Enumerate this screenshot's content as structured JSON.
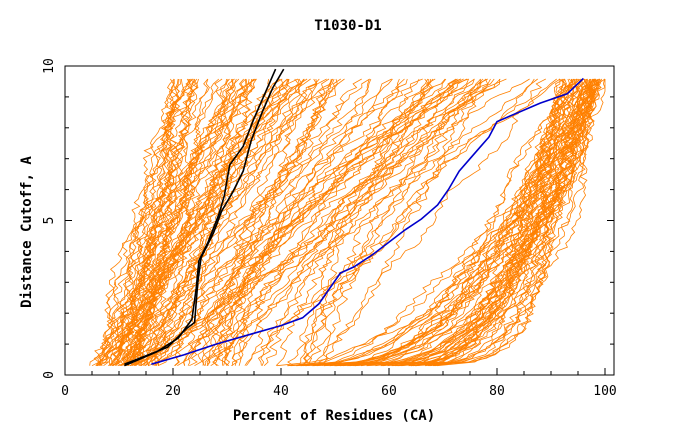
{
  "chart_data": {
    "type": "line",
    "title": "T1030-D1",
    "xlabel": "Percent of Residues (CA)",
    "ylabel": "Distance Cutoff, A",
    "xlim": [
      0,
      100
    ],
    "ylim": [
      0,
      10
    ],
    "x_ticks": [
      "0",
      "20",
      "40",
      "60",
      "80",
      "100"
    ],
    "y_ticks": [
      "0",
      "5",
      "10"
    ],
    "grid": false,
    "legend": "none",
    "colors": {
      "background_models": "#ff8000",
      "highlight_black": "#000000",
      "highlight_blue": "#0000cc"
    },
    "highlight_series": [
      {
        "color": "#000000",
        "points": [
          [
            11,
            0.35
          ],
          [
            19,
            0.9
          ],
          [
            22.5,
            1.5
          ],
          [
            24,
            1.7
          ],
          [
            24.6,
            3.0
          ],
          [
            25.2,
            3.8
          ],
          [
            27.5,
            4.6
          ],
          [
            29,
            5.3
          ],
          [
            31,
            5.9
          ],
          [
            33,
            6.6
          ],
          [
            34.5,
            7.6
          ],
          [
            36.5,
            8.5
          ],
          [
            38.5,
            9.3
          ],
          [
            40.5,
            9.9
          ]
        ]
      },
      {
        "color": "#000000",
        "points": [
          [
            11,
            0.3
          ],
          [
            17,
            0.75
          ],
          [
            21,
            1.2
          ],
          [
            23.5,
            1.8
          ],
          [
            24.3,
            2.8
          ],
          [
            24.8,
            3.7
          ],
          [
            26.5,
            4.3
          ],
          [
            28.5,
            5.2
          ],
          [
            29.5,
            5.8
          ],
          [
            30.5,
            6.8
          ],
          [
            33,
            7.4
          ],
          [
            35,
            8.3
          ],
          [
            37,
            9.1
          ],
          [
            39,
            9.9
          ]
        ]
      },
      {
        "color": "#0000cc",
        "points": [
          [
            16,
            0.35
          ],
          [
            22,
            0.65
          ],
          [
            28,
            1.0
          ],
          [
            34,
            1.3
          ],
          [
            40,
            1.6
          ],
          [
            44,
            1.85
          ],
          [
            47,
            2.3
          ],
          [
            49,
            2.8
          ],
          [
            51,
            3.3
          ],
          [
            53.5,
            3.5
          ],
          [
            57,
            3.9
          ],
          [
            60,
            4.3
          ],
          [
            63,
            4.7
          ],
          [
            66,
            5.05
          ],
          [
            69,
            5.5
          ],
          [
            71,
            6.0
          ],
          [
            73,
            6.6
          ],
          [
            75,
            7.0
          ],
          [
            77,
            7.4
          ],
          [
            78.5,
            7.7
          ],
          [
            80,
            8.2
          ],
          [
            84,
            8.5
          ],
          [
            88,
            8.8
          ],
          [
            93,
            9.1
          ],
          [
            96,
            9.6
          ]
        ]
      }
    ]
  }
}
